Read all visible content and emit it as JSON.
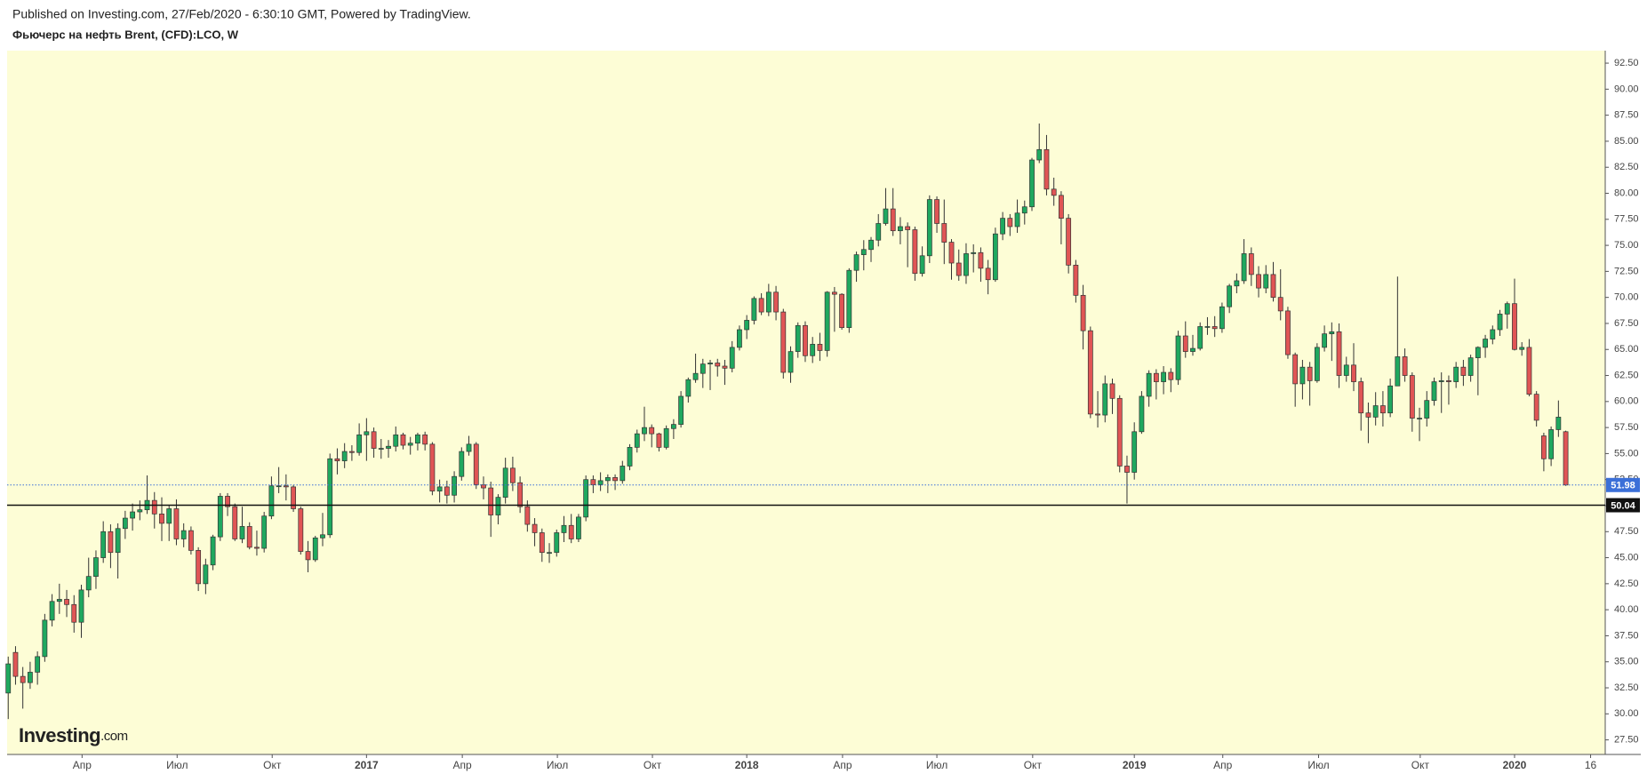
{
  "chart_data": {
    "type": "candlestick",
    "header": "Published on Investing.com, 27/Feb/2020 - 6:30:10 GMT, Powered by TradingView.",
    "title": "Фьючерс на нефть Brent, (CFD):LCO, W",
    "brand": [
      "Investing",
      ".com"
    ],
    "up_color": "#1fa85f",
    "down_color": "#e05555",
    "background": "#fdfdd6",
    "candles": [
      [
        32.0,
        35.5,
        29.5,
        34.8
      ],
      [
        35.9,
        36.5,
        32.8,
        33.6
      ],
      [
        33.6,
        34.5,
        30.5,
        33.0
      ],
      [
        33.0,
        35.0,
        32.4,
        34.0
      ],
      [
        34.0,
        36.0,
        32.8,
        35.5
      ],
      [
        35.5,
        39.6,
        35.0,
        39.0
      ],
      [
        39.0,
        41.5,
        38.4,
        40.8
      ],
      [
        40.8,
        42.5,
        39.6,
        41.0
      ],
      [
        41.0,
        41.9,
        39.3,
        40.5
      ],
      [
        40.5,
        41.4,
        37.8,
        38.8
      ],
      [
        38.8,
        42.4,
        37.3,
        41.9
      ],
      [
        41.9,
        45.0,
        41.2,
        43.2
      ],
      [
        43.2,
        45.7,
        42.0,
        45.0
      ],
      [
        45.0,
        48.5,
        44.5,
        47.5
      ],
      [
        47.5,
        48.2,
        44.0,
        45.5
      ],
      [
        45.5,
        48.3,
        43.0,
        47.8
      ],
      [
        47.8,
        49.5,
        46.8,
        48.8
      ],
      [
        48.8,
        50.2,
        47.6,
        49.4
      ],
      [
        49.4,
        50.5,
        48.6,
        49.6
      ],
      [
        49.6,
        52.9,
        49.2,
        50.5
      ],
      [
        50.5,
        51.3,
        47.8,
        49.2
      ],
      [
        49.2,
        50.8,
        46.6,
        48.3
      ],
      [
        48.3,
        50.0,
        46.6,
        49.7
      ],
      [
        49.7,
        50.6,
        46.2,
        46.8
      ],
      [
        46.8,
        48.3,
        46.0,
        47.6
      ],
      [
        47.6,
        48.0,
        45.3,
        45.7
      ],
      [
        45.7,
        46.0,
        41.8,
        42.5
      ],
      [
        42.5,
        44.9,
        41.5,
        44.3
      ],
      [
        44.3,
        47.2,
        43.8,
        47.0
      ],
      [
        47.0,
        51.2,
        46.6,
        50.9
      ],
      [
        50.9,
        51.2,
        49.0,
        49.9
      ],
      [
        49.9,
        50.2,
        46.6,
        46.8
      ],
      [
        46.8,
        49.9,
        46.4,
        48.0
      ],
      [
        48.0,
        48.4,
        45.8,
        46.0
      ],
      [
        46.0,
        47.6,
        45.2,
        45.9
      ],
      [
        45.9,
        49.4,
        45.5,
        49.0
      ],
      [
        49.0,
        52.8,
        48.7,
        51.9
      ],
      [
        51.9,
        53.7,
        51.2,
        51.9
      ],
      [
        51.9,
        53.0,
        50.5,
        51.8
      ],
      [
        51.8,
        52.0,
        49.4,
        49.7
      ],
      [
        49.7,
        49.9,
        45.3,
        45.6
      ],
      [
        45.6,
        46.6,
        43.6,
        44.8
      ],
      [
        44.8,
        47.1,
        44.6,
        46.9
      ],
      [
        46.9,
        49.3,
        46.1,
        47.2
      ],
      [
        47.2,
        55.0,
        46.9,
        54.5
      ],
      [
        54.5,
        55.5,
        53.0,
        54.3
      ],
      [
        54.3,
        56.0,
        53.6,
        55.2
      ],
      [
        55.2,
        55.8,
        54.3,
        55.1
      ],
      [
        55.1,
        57.9,
        54.8,
        56.8
      ],
      [
        56.8,
        58.4,
        54.3,
        57.1
      ],
      [
        57.1,
        57.5,
        54.6,
        55.5
      ],
      [
        55.5,
        56.4,
        54.5,
        55.5
      ],
      [
        55.5,
        56.3,
        54.6,
        55.7
      ],
      [
        55.7,
        57.6,
        55.2,
        56.8
      ],
      [
        56.8,
        57.0,
        55.4,
        55.8
      ],
      [
        55.8,
        56.6,
        54.9,
        56.0
      ],
      [
        56.0,
        57.0,
        55.3,
        56.8
      ],
      [
        56.8,
        57.1,
        55.3,
        55.9
      ],
      [
        55.9,
        56.1,
        51.0,
        51.4
      ],
      [
        51.4,
        52.5,
        50.3,
        51.8
      ],
      [
        51.8,
        52.4,
        50.2,
        51.0
      ],
      [
        51.0,
        53.3,
        50.3,
        52.8
      ],
      [
        52.8,
        55.6,
        52.4,
        55.2
      ],
      [
        55.2,
        56.7,
        54.8,
        55.9
      ],
      [
        55.9,
        56.1,
        51.6,
        52.0
      ],
      [
        52.0,
        52.8,
        50.6,
        51.7
      ],
      [
        51.7,
        52.3,
        47.0,
        49.1
      ],
      [
        49.1,
        51.1,
        48.2,
        50.8
      ],
      [
        50.8,
        54.6,
        50.2,
        53.6
      ],
      [
        53.6,
        54.7,
        51.4,
        52.2
      ],
      [
        52.2,
        52.8,
        49.3,
        49.9
      ],
      [
        49.9,
        50.5,
        47.5,
        48.2
      ],
      [
        48.2,
        48.8,
        46.1,
        47.4
      ],
      [
        47.4,
        47.8,
        44.6,
        45.5
      ],
      [
        45.5,
        46.4,
        44.5,
        45.5
      ],
      [
        45.5,
        47.7,
        45.1,
        47.4
      ],
      [
        47.4,
        49.0,
        46.5,
        48.1
      ],
      [
        48.1,
        49.2,
        46.4,
        46.8
      ],
      [
        46.8,
        49.2,
        46.5,
        48.9
      ],
      [
        48.9,
        52.9,
        48.5,
        52.5
      ],
      [
        52.5,
        52.9,
        51.2,
        52.0
      ],
      [
        52.0,
        53.2,
        51.4,
        52.4
      ],
      [
        52.4,
        53.0,
        51.2,
        52.7
      ],
      [
        52.7,
        53.0,
        51.5,
        52.4
      ],
      [
        52.4,
        54.3,
        52.1,
        53.8
      ],
      [
        53.8,
        55.9,
        53.4,
        55.6
      ],
      [
        55.6,
        57.3,
        55.1,
        56.9
      ],
      [
        56.9,
        59.5,
        56.2,
        57.5
      ],
      [
        57.5,
        57.8,
        55.6,
        56.9
      ],
      [
        56.9,
        57.0,
        55.2,
        55.6
      ],
      [
        55.6,
        57.7,
        55.4,
        57.4
      ],
      [
        57.4,
        58.3,
        56.4,
        57.8
      ],
      [
        57.8,
        61.0,
        57.5,
        60.5
      ],
      [
        60.5,
        62.3,
        59.9,
        62.1
      ],
      [
        62.1,
        64.6,
        61.8,
        62.7
      ],
      [
        62.7,
        64.1,
        61.3,
        63.6
      ],
      [
        63.6,
        64.0,
        61.1,
        63.7
      ],
      [
        63.7,
        64.1,
        62.4,
        63.4
      ],
      [
        63.4,
        64.0,
        61.6,
        63.2
      ],
      [
        63.2,
        65.8,
        62.8,
        65.2
      ],
      [
        65.2,
        67.3,
        64.9,
        66.9
      ],
      [
        66.9,
        68.3,
        66.0,
        67.8
      ],
      [
        67.8,
        70.1,
        67.4,
        69.9
      ],
      [
        69.9,
        70.4,
        68.3,
        68.6
      ],
      [
        68.6,
        71.3,
        68.2,
        70.5
      ],
      [
        70.5,
        71.1,
        67.8,
        68.6
      ],
      [
        68.6,
        68.9,
        62.2,
        62.8
      ],
      [
        62.8,
        65.3,
        61.8,
        64.8
      ],
      [
        64.8,
        67.6,
        64.2,
        67.3
      ],
      [
        67.3,
        67.7,
        63.8,
        64.4
      ],
      [
        64.4,
        66.2,
        63.7,
        65.5
      ],
      [
        65.5,
        66.6,
        63.9,
        64.9
      ],
      [
        64.9,
        70.6,
        64.3,
        70.5
      ],
      [
        70.5,
        71.0,
        66.7,
        70.3
      ],
      [
        70.3,
        70.4,
        66.9,
        67.1
      ],
      [
        67.1,
        72.8,
        66.6,
        72.6
      ],
      [
        72.6,
        74.4,
        71.5,
        74.1
      ],
      [
        74.1,
        75.5,
        72.6,
        74.6
      ],
      [
        74.6,
        75.8,
        73.4,
        75.5
      ],
      [
        75.5,
        78.0,
        74.9,
        77.1
      ],
      [
        77.1,
        80.5,
        76.9,
        78.5
      ],
      [
        78.5,
        80.5,
        75.9,
        76.4
      ],
      [
        76.4,
        77.7,
        75.1,
        76.8
      ],
      [
        76.8,
        77.2,
        72.9,
        76.5
      ],
      [
        76.5,
        76.8,
        71.6,
        72.3
      ],
      [
        72.3,
        74.9,
        72.0,
        74.0
      ],
      [
        74.0,
        79.8,
        73.3,
        79.4
      ],
      [
        79.4,
        79.7,
        76.2,
        77.1
      ],
      [
        77.1,
        79.4,
        73.2,
        75.3
      ],
      [
        75.3,
        75.6,
        71.7,
        73.3
      ],
      [
        73.3,
        74.6,
        71.6,
        72.1
      ],
      [
        72.1,
        75.2,
        71.3,
        74.2
      ],
      [
        74.2,
        75.1,
        72.4,
        74.3
      ],
      [
        74.3,
        74.8,
        71.5,
        72.8
      ],
      [
        72.8,
        73.6,
        70.3,
        71.7
      ],
      [
        71.7,
        76.7,
        71.5,
        76.1
      ],
      [
        76.1,
        78.2,
        75.5,
        77.6
      ],
      [
        77.6,
        78.0,
        75.9,
        76.8
      ],
      [
        76.8,
        79.4,
        76.2,
        78.1
      ],
      [
        78.1,
        79.3,
        77.0,
        78.7
      ],
      [
        78.7,
        83.4,
        78.3,
        83.2
      ],
      [
        83.2,
        86.7,
        82.9,
        84.2
      ],
      [
        84.2,
        85.6,
        79.8,
        80.4
      ],
      [
        80.4,
        81.5,
        78.8,
        79.8
      ],
      [
        79.8,
        80.2,
        75.1,
        77.6
      ],
      [
        77.6,
        78.0,
        72.3,
        73.1
      ],
      [
        73.1,
        73.6,
        69.5,
        70.2
      ],
      [
        70.2,
        71.2,
        65.0,
        66.8
      ],
      [
        66.8,
        67.2,
        58.4,
        58.8
      ],
      [
        58.8,
        61.0,
        57.5,
        58.7
      ],
      [
        58.7,
        62.5,
        58.0,
        61.7
      ],
      [
        61.7,
        62.2,
        58.8,
        60.3
      ],
      [
        60.3,
        60.6,
        53.2,
        53.8
      ],
      [
        53.8,
        54.8,
        50.2,
        53.2
      ],
      [
        53.2,
        58.0,
        52.5,
        57.1
      ],
      [
        57.1,
        61.0,
        56.9,
        60.5
      ],
      [
        60.5,
        63.0,
        59.5,
        62.7
      ],
      [
        62.7,
        63.1,
        60.2,
        61.9
      ],
      [
        61.9,
        63.4,
        60.7,
        62.8
      ],
      [
        62.8,
        63.2,
        60.9,
        62.1
      ],
      [
        62.1,
        66.8,
        61.6,
        66.3
      ],
      [
        66.3,
        67.7,
        64.2,
        64.8
      ],
      [
        64.8,
        66.4,
        64.4,
        65.1
      ],
      [
        65.1,
        67.6,
        64.9,
        67.2
      ],
      [
        67.2,
        68.1,
        66.4,
        67.2
      ],
      [
        67.2,
        68.2,
        66.2,
        67.0
      ],
      [
        67.0,
        69.5,
        66.6,
        69.1
      ],
      [
        69.1,
        71.3,
        68.5,
        71.1
      ],
      [
        71.1,
        72.3,
        70.4,
        71.6
      ],
      [
        71.6,
        75.6,
        71.3,
        74.2
      ],
      [
        74.2,
        74.8,
        71.1,
        72.2
      ],
      [
        72.2,
        73.0,
        70.0,
        70.9
      ],
      [
        70.9,
        73.1,
        70.4,
        72.2
      ],
      [
        72.2,
        73.4,
        69.6,
        70.0
      ],
      [
        70.0,
        72.7,
        67.8,
        68.7
      ],
      [
        68.7,
        69.1,
        64.1,
        64.5
      ],
      [
        64.5,
        64.7,
        59.5,
        61.7
      ],
      [
        61.7,
        64.0,
        60.2,
        63.3
      ],
      [
        63.3,
        63.8,
        59.6,
        62.0
      ],
      [
        62.0,
        65.6,
        61.8,
        65.2
      ],
      [
        65.2,
        67.3,
        64.8,
        66.5
      ],
      [
        66.5,
        67.6,
        63.9,
        66.7
      ],
      [
        66.7,
        67.5,
        61.3,
        62.5
      ],
      [
        62.5,
        64.3,
        61.9,
        63.5
      ],
      [
        63.5,
        65.6,
        61.0,
        61.9
      ],
      [
        61.9,
        62.3,
        57.2,
        58.9
      ],
      [
        58.9,
        59.9,
        56.0,
        58.5
      ],
      [
        58.5,
        60.9,
        57.7,
        59.6
      ],
      [
        59.6,
        61.0,
        57.6,
        58.9
      ],
      [
        58.9,
        62.2,
        58.5,
        61.5
      ],
      [
        61.5,
        72.0,
        61.5,
        64.3
      ],
      [
        64.3,
        65.1,
        61.9,
        62.5
      ],
      [
        62.5,
        62.8,
        57.1,
        58.4
      ],
      [
        58.4,
        59.4,
        56.2,
        58.4
      ],
      [
        58.4,
        61.0,
        57.6,
        60.1
      ],
      [
        60.1,
        62.3,
        59.6,
        61.9
      ],
      [
        61.9,
        62.8,
        58.9,
        62.0
      ],
      [
        62.0,
        62.5,
        59.7,
        61.9
      ],
      [
        61.9,
        63.8,
        61.3,
        63.3
      ],
      [
        63.3,
        64.0,
        61.5,
        62.5
      ],
      [
        62.5,
        64.5,
        61.9,
        64.2
      ],
      [
        64.2,
        65.3,
        60.6,
        65.2
      ],
      [
        65.2,
        66.4,
        64.2,
        66.0
      ],
      [
        66.0,
        67.3,
        65.5,
        66.9
      ],
      [
        66.9,
        68.8,
        66.3,
        68.4
      ],
      [
        68.4,
        69.6,
        67.0,
        69.4
      ],
      [
        69.4,
        71.8,
        64.9,
        65.0
      ],
      [
        65.0,
        65.7,
        64.4,
        65.2
      ],
      [
        65.2,
        66.0,
        60.5,
        60.7
      ],
      [
        60.7,
        61.0,
        57.6,
        58.2
      ],
      [
        56.7,
        57.0,
        53.3,
        54.5
      ],
      [
        54.5,
        57.6,
        53.8,
        57.3
      ],
      [
        57.3,
        60.1,
        56.6,
        58.5
      ],
      [
        57.1,
        57.2,
        51.9,
        51.98
      ]
    ],
    "xlim": [
      -0.15,
      218.4
    ],
    "xticks": [
      {
        "value": 10.1,
        "label": "Апр"
      },
      {
        "value": 23.1,
        "label": "Июл"
      },
      {
        "value": 36.1,
        "label": "Окт"
      },
      {
        "value": 49,
        "label": "2017"
      },
      {
        "value": 62.1,
        "label": "Апр"
      },
      {
        "value": 75.1,
        "label": "Июл"
      },
      {
        "value": 88.1,
        "label": "Окт"
      },
      {
        "value": 101,
        "label": "2018"
      },
      {
        "value": 114.1,
        "label": "Апр"
      },
      {
        "value": 127,
        "label": "Июл"
      },
      {
        "value": 140.1,
        "label": "Окт"
      },
      {
        "value": 154,
        "label": "2019"
      },
      {
        "value": 166.1,
        "label": "Апр"
      },
      {
        "value": 179.2,
        "label": "Июл"
      },
      {
        "value": 193.1,
        "label": "Окт"
      },
      {
        "value": 206,
        "label": "2020"
      },
      {
        "value": 216.4,
        "label": "16"
      }
    ],
    "ylim": [
      26.1,
      93.7
    ],
    "yticks": [
      {
        "value": 27.5,
        "label": "27.50"
      },
      {
        "value": 30,
        "label": "30.00"
      },
      {
        "value": 32.5,
        "label": "32.50"
      },
      {
        "value": 35,
        "label": "35.00"
      },
      {
        "value": 37.5,
        "label": "37.50"
      },
      {
        "value": 40,
        "label": "40.00"
      },
      {
        "value": 42.5,
        "label": "42.50"
      },
      {
        "value": 45,
        "label": "45.00"
      },
      {
        "value": 47.5,
        "label": "47.50"
      },
      {
        "value": 50,
        "label": "50.00"
      },
      {
        "value": 52.5,
        "label": "52.50"
      },
      {
        "value": 55,
        "label": "55.00"
      },
      {
        "value": 57.5,
        "label": "57.50"
      },
      {
        "value": 60,
        "label": "60.00"
      },
      {
        "value": 62.5,
        "label": "62.50"
      },
      {
        "value": 65,
        "label": "65.00"
      },
      {
        "value": 67.5,
        "label": "67.50"
      },
      {
        "value": 70,
        "label": "70.00"
      },
      {
        "value": 72.5,
        "label": "72.50"
      },
      {
        "value": 75,
        "label": "75.00"
      },
      {
        "value": 77.5,
        "label": "77.50"
      },
      {
        "value": 80,
        "label": "80.00"
      },
      {
        "value": 82.5,
        "label": "82.50"
      },
      {
        "value": 85,
        "label": "85.00"
      },
      {
        "value": 87.5,
        "label": "87.50"
      },
      {
        "value": 90,
        "label": "90.00"
      },
      {
        "value": 92.5,
        "label": "92.50"
      }
    ],
    "price_lines": [
      {
        "value": 51.98,
        "style": "dotted",
        "color": "#3b6fd8"
      },
      {
        "value": 50.04,
        "style": "solid",
        "color": "#111111"
      }
    ]
  }
}
